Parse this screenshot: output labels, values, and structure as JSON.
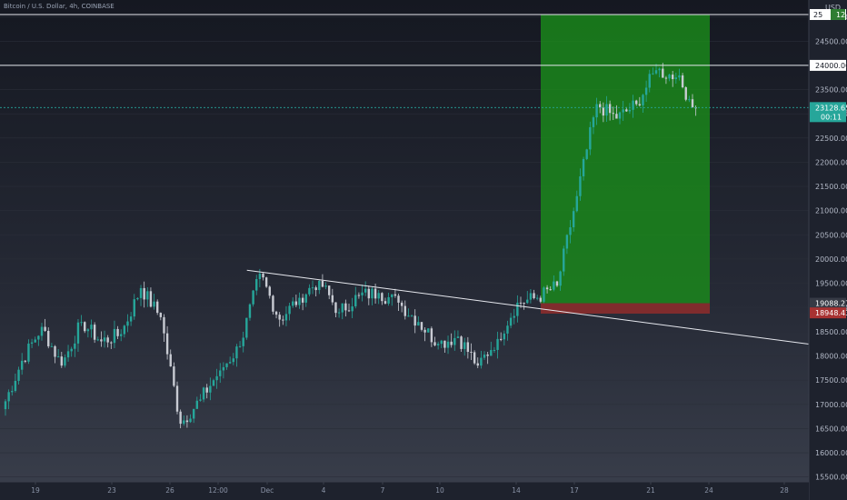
{
  "header": {
    "symbol": "Bitcoin / U.S. Dollar, 4h, COINBASE",
    "currency": "USD"
  },
  "badges": {
    "top": "25",
    "top_tag": "12",
    "current_price": "23128.65",
    "countdown": "00:11",
    "level_green": "19088.27",
    "level_red": "18948.43"
  },
  "colors": {
    "up": "#26a69a",
    "down": "#c8cbd3",
    "profit_zone": "#1a8f1a",
    "stop_zone": "#8b2c2c",
    "lines": "#e6e8ee",
    "current_badge": "#26a69a",
    "green_badge": "#2e7d32",
    "red_badge": "#a83232"
  },
  "chart_data": {
    "type": "candlestick",
    "y_axis": {
      "range": [
        15400,
        25350
      ],
      "ticks": [
        "15500.00",
        "16000.00",
        "16500.00",
        "17000.00",
        "17500.00",
        "18000.00",
        "18500.00",
        "19000.00",
        "19500.00",
        "20000.00",
        "20500.00",
        "21000.00",
        "21500.00",
        "22000.00",
        "22500.00",
        "23000.00",
        "23500.00",
        "24000.00",
        "24500.00",
        "25000.00"
      ]
    },
    "x_axis": {
      "labels": [
        "19",
        "23",
        "26",
        "12:00",
        "Dec",
        "4",
        "7",
        "10",
        "14",
        "17",
        "21",
        "24",
        "28"
      ]
    },
    "horizontal_lines": [
      25050,
      24000,
      23128.65
    ],
    "trendline": {
      "from": {
        "x": "Nov 30",
        "y": 19770
      },
      "to": {
        "x": "Dec 28",
        "y": 18140
      }
    },
    "position": {
      "type": "long",
      "entry": 19088.27,
      "stop": 18948.43,
      "target": 25050
    },
    "series": [
      {
        "label": "Nov 18",
        "open": 16900,
        "close": 17900
      },
      {
        "label": "Nov 19",
        "open": 17900,
        "close": 18600
      },
      {
        "label": "Nov 20",
        "open": 18600,
        "close": 17800
      },
      {
        "label": "Nov 21",
        "open": 17800,
        "close": 18700
      },
      {
        "label": "Nov 22",
        "open": 18700,
        "close": 18300
      },
      {
        "label": "Nov 23",
        "open": 18300,
        "close": 18450
      },
      {
        "label": "Nov 24",
        "open": 18450,
        "close": 19400
      },
      {
        "label": "Nov 25",
        "open": 19400,
        "close": 18800
      },
      {
        "label": "Nov 26",
        "open": 18800,
        "close": 16600
      },
      {
        "label": "Nov 27",
        "open": 16600,
        "close": 17100
      },
      {
        "label": "Nov 28",
        "open": 17100,
        "close": 17700
      },
      {
        "label": "Nov 29",
        "open": 17700,
        "close": 18200
      },
      {
        "label": "Nov 30",
        "open": 18200,
        "close": 19700
      },
      {
        "label": "Dec 1",
        "open": 19700,
        "close": 18750
      },
      {
        "label": "Dec 2",
        "open": 18750,
        "close": 19200
      },
      {
        "label": "Dec 3",
        "open": 19200,
        "close": 19550
      },
      {
        "label": "Dec 4",
        "open": 19550,
        "close": 18900
      },
      {
        "label": "Dec 5",
        "open": 18900,
        "close": 19250
      },
      {
        "label": "Dec 6",
        "open": 19250,
        "close": 19300
      },
      {
        "label": "Dec 7",
        "open": 19300,
        "close": 19100
      },
      {
        "label": "Dec 8",
        "open": 19100,
        "close": 18700
      },
      {
        "label": "Dec 9",
        "open": 18700,
        "close": 18250
      },
      {
        "label": "Dec 10",
        "open": 18250,
        "close": 18400
      },
      {
        "label": "Dec 11",
        "open": 18400,
        "close": 17800
      },
      {
        "label": "Dec 12",
        "open": 17800,
        "close": 18350
      },
      {
        "label": "Dec 13",
        "open": 18350,
        "close": 19100
      },
      {
        "label": "Dec 14",
        "open": 19100,
        "close": 19200
      },
      {
        "label": "Dec 15",
        "open": 19200,
        "close": 19450
      },
      {
        "label": "Dec 16",
        "open": 19450,
        "close": 21300
      },
      {
        "label": "Dec 17",
        "open": 21300,
        "close": 23200
      },
      {
        "label": "Dec 18",
        "open": 23200,
        "close": 22900
      },
      {
        "label": "Dec 19",
        "open": 22900,
        "close": 23200
      },
      {
        "label": "Dec 20",
        "open": 23200,
        "close": 23900
      },
      {
        "label": "Dec 21",
        "open": 23900,
        "close": 23750
      },
      {
        "label": "Dec 22",
        "open": 23750,
        "close": 23128.65
      }
    ]
  }
}
